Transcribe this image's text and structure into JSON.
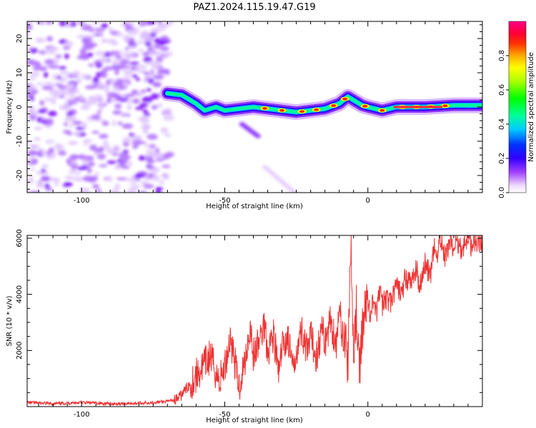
{
  "title": "PAZ1.2024.115.19.47.G19",
  "chart_data": [
    {
      "type": "heatmap",
      "xlabel": "Height of straight line (km)",
      "ylabel": "Frequency (Hz)",
      "xlim": [
        -119,
        40
      ],
      "ylim": [
        -25,
        25
      ],
      "x_ticks": [
        -100,
        -50,
        0
      ],
      "y_ticks": [
        -20,
        -10,
        0,
        10,
        20
      ],
      "colorbar": {
        "label": "Normalized spectral amplitude",
        "ticks": [
          "0.0",
          "0.2",
          "0.4",
          "0.6",
          "0.8"
        ],
        "range": [
          0,
          1
        ]
      },
      "ridge_frequency_hz": [
        {
          "x": -70,
          "y": 4
        },
        {
          "x": -65,
          "y": 3.5
        },
        {
          "x": -60,
          "y": 1
        },
        {
          "x": -57,
          "y": -1
        },
        {
          "x": -53,
          "y": 0
        },
        {
          "x": -50,
          "y": -1
        },
        {
          "x": -45,
          "y": -0.5
        },
        {
          "x": -40,
          "y": 0
        },
        {
          "x": -35,
          "y": -0.5
        },
        {
          "x": -30,
          "y": -1
        },
        {
          "x": -25,
          "y": -1.5
        },
        {
          "x": -20,
          "y": -1
        },
        {
          "x": -15,
          "y": -0.5
        },
        {
          "x": -10,
          "y": 1
        },
        {
          "x": -7,
          "y": 3
        },
        {
          "x": -5,
          "y": 2
        },
        {
          "x": -2,
          "y": 0.5
        },
        {
          "x": 0,
          "y": 0
        },
        {
          "x": 5,
          "y": -1
        },
        {
          "x": 10,
          "y": 0
        },
        {
          "x": 20,
          "y": 0
        },
        {
          "x": 30,
          "y": 0.5
        },
        {
          "x": 40,
          "y": 0.5
        }
      ]
    },
    {
      "type": "line",
      "xlabel": "Height of straight line (km)",
      "ylabel": "SNR (10 * v/v)",
      "xlim": [
        -119,
        40
      ],
      "ylim": [
        0,
        6100
      ],
      "x_ticks": [
        -100,
        -50,
        0
      ],
      "y_ticks": [
        2000,
        4000,
        6000
      ],
      "color": "#ee3333",
      "x": [
        -119,
        -110,
        -100,
        -90,
        -80,
        -70,
        -66,
        -63,
        -60,
        -57,
        -55,
        -52,
        -50,
        -48,
        -45,
        -43,
        -41,
        -40,
        -38,
        -36,
        -35,
        -33,
        -31,
        -30,
        -28,
        -26,
        -25,
        -23,
        -21,
        -20,
        -18,
        -16,
        -15,
        -13,
        -11,
        -10,
        -8,
        -7,
        -6,
        -5,
        -4,
        -3,
        -2,
        -1,
        0,
        1,
        2,
        3,
        4,
        5,
        6,
        8,
        10,
        12,
        13,
        15,
        17,
        18,
        20,
        22,
        23,
        24,
        25,
        27,
        29,
        30,
        31,
        33,
        35,
        36,
        37,
        38,
        39,
        40
      ],
      "values": [
        150,
        100,
        150,
        100,
        120,
        180,
        300,
        700,
        1100,
        1500,
        1800,
        900,
        1400,
        2500,
        700,
        1600,
        2900,
        1800,
        2300,
        3000,
        2000,
        2600,
        1100,
        2100,
        2500,
        1200,
        2100,
        2700,
        1800,
        2500,
        1800,
        2800,
        2300,
        3100,
        2200,
        3300,
        2500,
        1400,
        5900,
        2000,
        3500,
        1000,
        2800,
        3400,
        3800,
        3200,
        4000,
        3200,
        4200,
        3600,
        3900,
        3700,
        4300,
        4000,
        4600,
        4400,
        4900,
        4300,
        5100,
        4600,
        5700,
        5200,
        6100,
        5300,
        6000,
        5400,
        5900,
        5600,
        6100,
        5700,
        6000,
        5800,
        5900,
        5900
      ]
    }
  ]
}
